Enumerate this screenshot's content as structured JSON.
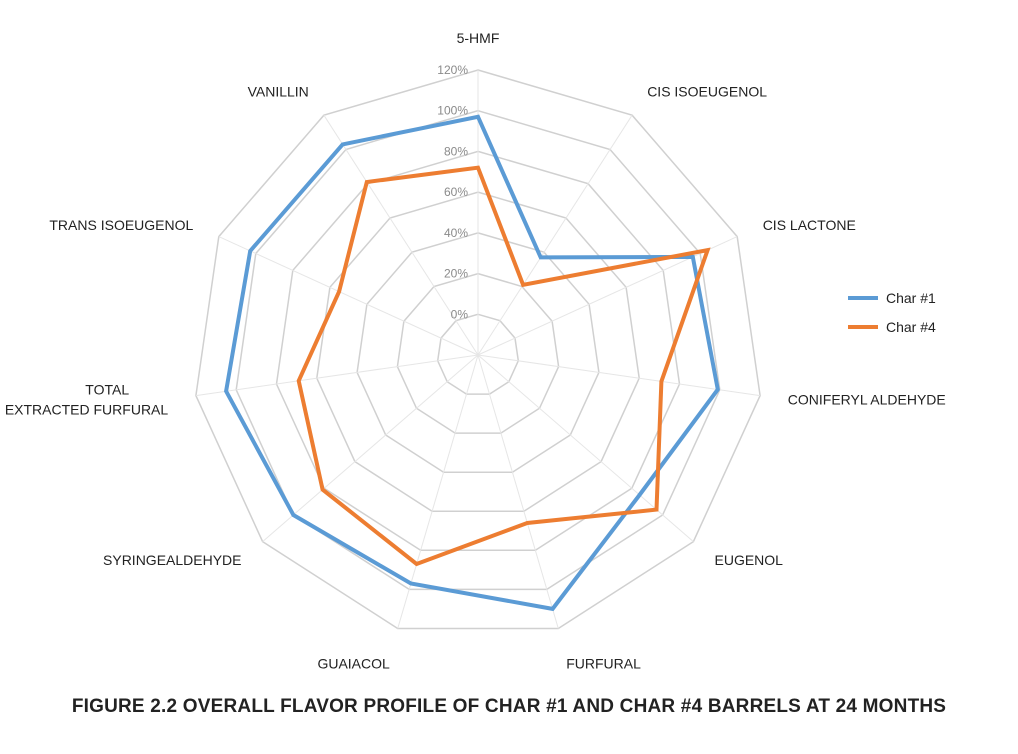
{
  "chart_data": {
    "type": "radar",
    "caption": "FIGURE 2.2  OVERALL FLAVOR PROFILE OF CHAR #1 AND CHAR #4 BARRELS AT 24 MONTHS",
    "categories": [
      "5-HMF",
      "CIS ISOEUGENOL",
      "CIS LACTONE",
      "CONIFERYL ALDEHYDE",
      "EUGENOL",
      "FURFURAL",
      "GUAIACOL",
      "SYRINGEALDEHYDE",
      "TOTAL EXTRACTED FURFURAL",
      "TRANS ISOEUGENOL",
      "VANILLIN"
    ],
    "ticks": [
      "0%",
      "20%",
      "40%",
      "60%",
      "80%",
      "100%",
      "120%"
    ],
    "rlim": [
      -20,
      120
    ],
    "grid": true,
    "legend_position": "right",
    "series": [
      {
        "name": "Char #1",
        "color": "#5b9bd5",
        "values": [
          97,
          37,
          96,
          99,
          85,
          110,
          97,
          100,
          105,
          103,
          103
        ]
      },
      {
        "name": "Char #4",
        "color": "#ed7d31",
        "values": [
          72,
          21,
          104,
          71,
          96,
          66,
          87,
          81,
          69,
          55,
          81
        ]
      }
    ]
  }
}
